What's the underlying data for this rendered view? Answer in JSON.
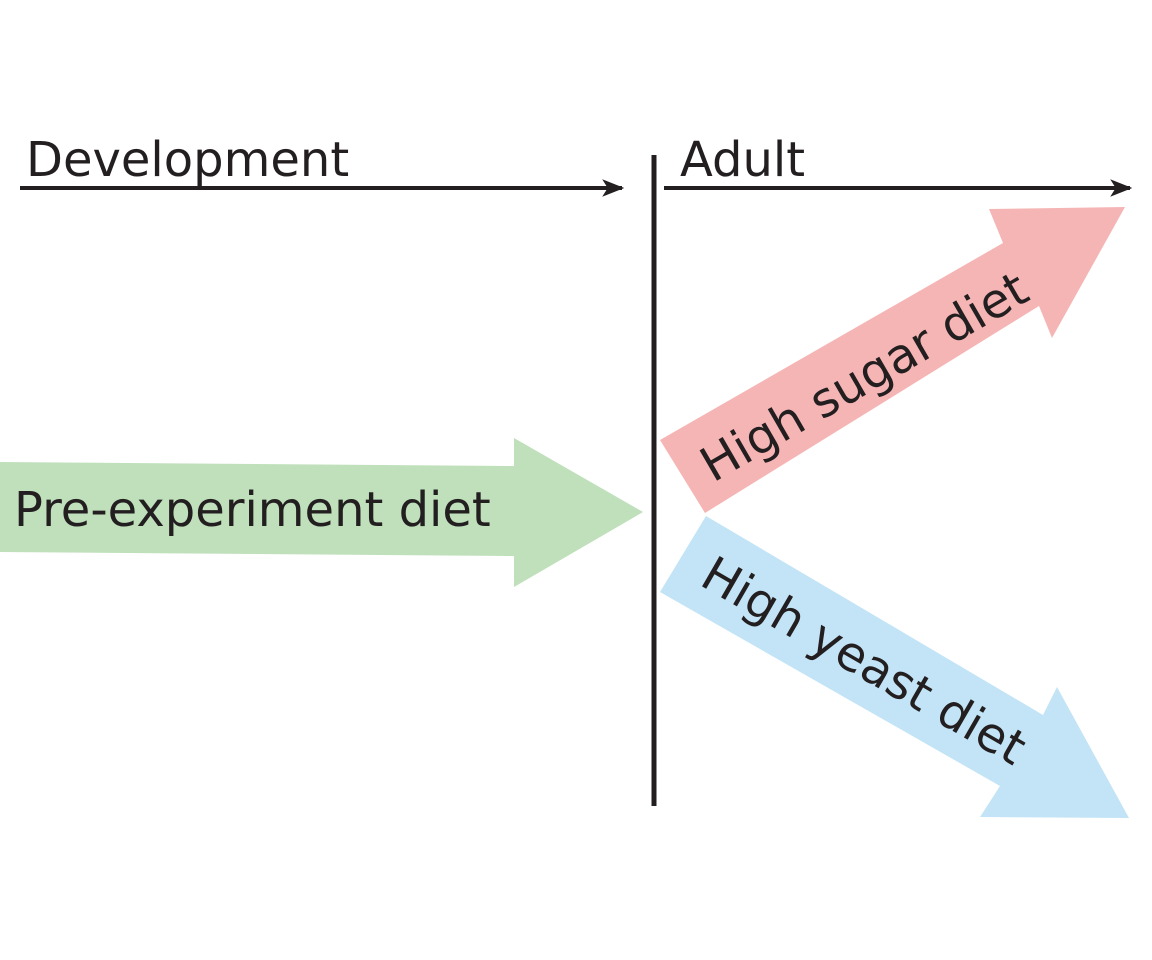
{
  "phases": {
    "development": "Development",
    "adult": "Adult"
  },
  "diets": {
    "pre_experiment": {
      "label": "Pre-experiment diet",
      "color": "#bfe0bb"
    },
    "high_sugar": {
      "label": "High sugar diet",
      "color": "#f6b5b5"
    },
    "high_yeast": {
      "label": "High yeast diet",
      "color": "#c2e4f6"
    }
  },
  "line_color": "#231f20"
}
